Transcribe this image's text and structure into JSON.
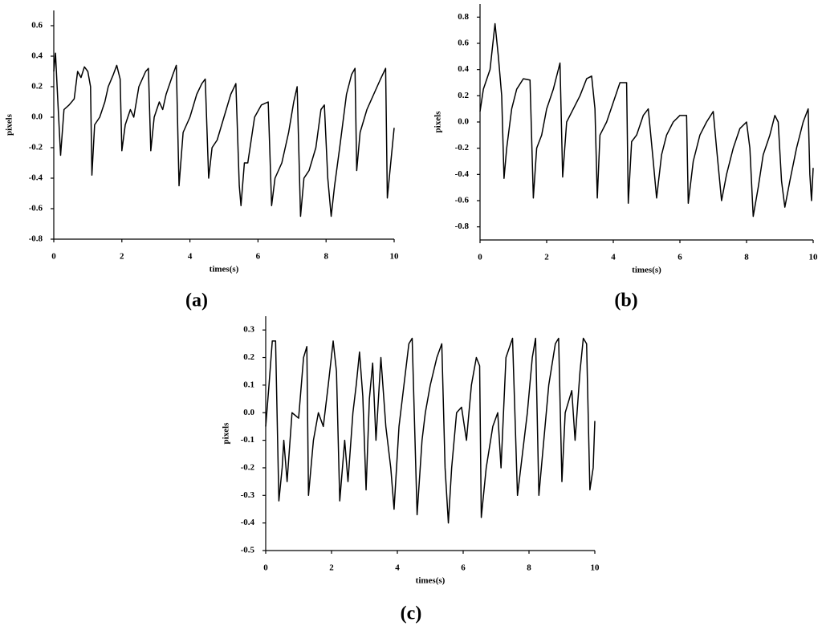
{
  "chart_data": [
    {
      "type": "line",
      "caption": "(a)",
      "xlabel": "times(s)",
      "ylabel": "pixels",
      "color": "#000000",
      "xlim": [
        0,
        10
      ],
      "ylim": [
        -0.8,
        0.7
      ],
      "xticks": [
        0,
        2,
        4,
        6,
        8,
        10
      ],
      "yticks": [
        -0.8,
        -0.6,
        -0.4,
        -0.2,
        {
          "value": 0,
          "label": "0.0"
        },
        0.2,
        0.4,
        0.6
      ],
      "x": [
        0,
        0.05,
        0.12,
        0.2,
        0.3,
        0.45,
        0.6,
        0.7,
        0.8,
        0.9,
        1.0,
        1.08,
        1.12,
        1.2,
        1.35,
        1.5,
        1.6,
        1.75,
        1.85,
        1.95,
        2.0,
        2.1,
        2.25,
        2.35,
        2.5,
        2.7,
        2.78,
        2.85,
        2.95,
        3.1,
        3.2,
        3.3,
        3.5,
        3.6,
        3.68,
        3.8,
        3.9,
        4.0,
        4.2,
        4.35,
        4.45,
        4.55,
        4.65,
        4.8,
        5.0,
        5.2,
        5.35,
        5.45,
        5.5,
        5.6,
        5.7,
        5.9,
        6.1,
        6.3,
        6.4,
        6.5,
        6.7,
        6.9,
        7.05,
        7.15,
        7.25,
        7.35,
        7.5,
        7.7,
        7.85,
        7.95,
        8.05,
        8.15,
        8.25,
        8.4,
        8.6,
        8.75,
        8.85,
        8.9,
        9.0,
        9.2,
        9.4,
        9.6,
        9.75,
        9.8,
        9.9,
        10.0
      ],
      "values": [
        0.3,
        0.42,
        0.1,
        -0.25,
        0.05,
        0.08,
        0.12,
        0.3,
        0.26,
        0.33,
        0.3,
        0.2,
        -0.38,
        -0.05,
        0.0,
        0.1,
        0.2,
        0.28,
        0.34,
        0.25,
        -0.22,
        -0.05,
        0.05,
        0.0,
        0.2,
        0.3,
        0.32,
        -0.22,
        0.0,
        0.1,
        0.05,
        0.15,
        0.28,
        0.34,
        -0.45,
        -0.1,
        -0.05,
        0.0,
        0.15,
        0.22,
        0.25,
        -0.4,
        -0.2,
        -0.15,
        0.0,
        0.15,
        0.22,
        -0.45,
        -0.58,
        -0.3,
        -0.3,
        0.0,
        0.08,
        0.1,
        -0.58,
        -0.4,
        -0.3,
        -0.1,
        0.1,
        0.2,
        -0.65,
        -0.4,
        -0.35,
        -0.2,
        0.05,
        0.08,
        -0.4,
        -0.65,
        -0.45,
        -0.2,
        0.15,
        0.28,
        0.32,
        -0.35,
        -0.1,
        0.05,
        0.15,
        0.25,
        0.32,
        -0.53,
        -0.3,
        -0.07
      ]
    },
    {
      "type": "line",
      "caption": "(b)",
      "xlabel": "times(s)",
      "ylabel": "pixels",
      "color": "#000000",
      "xlim": [
        0,
        10
      ],
      "ylim": [
        -0.9,
        0.9
      ],
      "xticks": [
        0,
        2,
        4,
        6,
        8,
        10
      ],
      "yticks": [
        -0.8,
        -0.6,
        -0.4,
        -0.2,
        {
          "value": 0,
          "label": "0.0"
        },
        0.2,
        0.4,
        0.6,
        0.8
      ],
      "x": [
        0,
        0.1,
        0.3,
        0.45,
        0.55,
        0.65,
        0.72,
        0.8,
        0.95,
        1.1,
        1.3,
        1.5,
        1.6,
        1.7,
        1.85,
        2.0,
        2.2,
        2.4,
        2.48,
        2.6,
        2.8,
        3.0,
        3.2,
        3.35,
        3.45,
        3.52,
        3.6,
        3.8,
        4.0,
        4.2,
        4.4,
        4.45,
        4.55,
        4.7,
        4.9,
        5.05,
        5.2,
        5.3,
        5.45,
        5.6,
        5.8,
        6.0,
        6.2,
        6.25,
        6.4,
        6.6,
        6.8,
        7.0,
        7.1,
        7.25,
        7.4,
        7.6,
        7.8,
        8.0,
        8.1,
        8.2,
        8.35,
        8.5,
        8.7,
        8.85,
        8.95,
        9.05,
        9.15,
        9.3,
        9.5,
        9.7,
        9.85,
        9.9,
        9.95,
        10.0
      ],
      "values": [
        0.08,
        0.25,
        0.4,
        0.75,
        0.5,
        0.2,
        -0.43,
        -0.2,
        0.1,
        0.25,
        0.33,
        0.32,
        -0.58,
        -0.2,
        -0.1,
        0.1,
        0.25,
        0.45,
        -0.42,
        0.0,
        0.1,
        0.2,
        0.33,
        0.35,
        0.1,
        -0.58,
        -0.1,
        0.0,
        0.15,
        0.3,
        0.3,
        -0.62,
        -0.15,
        -0.1,
        0.05,
        0.1,
        -0.3,
        -0.58,
        -0.25,
        -0.1,
        0.0,
        0.05,
        0.05,
        -0.62,
        -0.3,
        -0.1,
        0.0,
        0.08,
        -0.2,
        -0.6,
        -0.4,
        -0.2,
        -0.05,
        0.0,
        -0.2,
        -0.72,
        -0.5,
        -0.25,
        -0.1,
        0.05,
        0.0,
        -0.45,
        -0.65,
        -0.45,
        -0.2,
        0.0,
        0.1,
        -0.4,
        -0.6,
        -0.35
      ]
    },
    {
      "type": "line",
      "caption": "(c)",
      "xlabel": "times(s)",
      "ylabel": "pixels",
      "color": "#000000",
      "xlim": [
        0,
        10
      ],
      "ylim": [
        -0.5,
        0.35
      ],
      "xticks": [
        0,
        2,
        4,
        6,
        8,
        10
      ],
      "yticks": [
        -0.5,
        -0.4,
        -0.3,
        -0.2,
        -0.1,
        {
          "value": 0,
          "label": "0.0"
        },
        0.1,
        0.2,
        0.3
      ],
      "x": [
        0,
        0.1,
        0.2,
        0.3,
        0.4,
        0.5,
        0.55,
        0.65,
        0.8,
        1.0,
        1.15,
        1.25,
        1.3,
        1.45,
        1.6,
        1.75,
        1.9,
        2.05,
        2.15,
        2.25,
        2.4,
        2.5,
        2.65,
        2.75,
        2.85,
        2.95,
        3.05,
        3.15,
        3.25,
        3.35,
        3.5,
        3.65,
        3.8,
        3.9,
        4.05,
        4.15,
        4.35,
        4.45,
        4.6,
        4.75,
        4.85,
        5.0,
        5.2,
        5.35,
        5.45,
        5.55,
        5.65,
        5.8,
        5.95,
        6.1,
        6.25,
        6.4,
        6.5,
        6.55,
        6.7,
        6.9,
        7.05,
        7.15,
        7.3,
        7.5,
        7.65,
        7.8,
        7.95,
        8.1,
        8.2,
        8.3,
        8.45,
        8.6,
        8.8,
        8.9,
        9.0,
        9.1,
        9.3,
        9.4,
        9.55,
        9.65,
        9.75,
        9.85,
        9.95,
        10.0
      ],
      "values": [
        -0.05,
        0.1,
        0.26,
        0.26,
        -0.32,
        -0.2,
        -0.1,
        -0.25,
        0.0,
        -0.02,
        0.2,
        0.24,
        -0.3,
        -0.1,
        0.0,
        -0.05,
        0.1,
        0.26,
        0.15,
        -0.32,
        -0.1,
        -0.25,
        0.0,
        0.1,
        0.22,
        0.06,
        -0.28,
        0.05,
        0.18,
        -0.1,
        0.2,
        -0.05,
        -0.2,
        -0.35,
        -0.05,
        0.05,
        0.25,
        0.27,
        -0.37,
        -0.1,
        0.0,
        0.1,
        0.2,
        0.25,
        -0.2,
        -0.4,
        -0.2,
        0.0,
        0.02,
        -0.1,
        0.1,
        0.2,
        0.17,
        -0.38,
        -0.2,
        -0.05,
        0.0,
        -0.2,
        0.2,
        0.27,
        -0.3,
        -0.15,
        0.0,
        0.2,
        0.27,
        -0.3,
        -0.1,
        0.1,
        0.25,
        0.27,
        -0.25,
        0.0,
        0.08,
        -0.1,
        0.15,
        0.27,
        0.25,
        -0.28,
        -0.2,
        -0.03
      ]
    }
  ]
}
